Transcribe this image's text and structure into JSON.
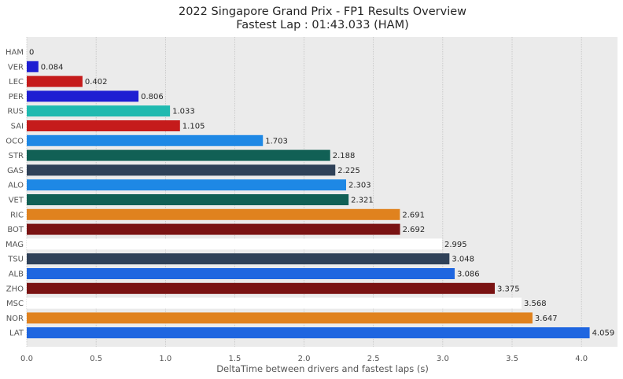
{
  "chart_data": {
    "type": "bar",
    "orientation": "horizontal",
    "title": "2022 Singapore Grand Prix - FP1 Results Overview",
    "subtitle": "Fastest Lap : 01:43.033 (HAM)",
    "xlabel": "DeltaTime between drivers and fastest laps (s)",
    "ylabel": "",
    "xlim": [
      0,
      4.26
    ],
    "xticks": [
      "0.0",
      "0.5",
      "1.0",
      "1.5",
      "2.0",
      "2.5",
      "3.0",
      "3.5",
      "4.0"
    ],
    "grid": true,
    "background": "#ebebeb",
    "categories": [
      "HAM",
      "VER",
      "LEC",
      "PER",
      "RUS",
      "SAI",
      "OCO",
      "STR",
      "GAS",
      "ALO",
      "VET",
      "RIC",
      "BOT",
      "MAG",
      "TSU",
      "ALB",
      "ZHO",
      "MSC",
      "NOR",
      "LAT"
    ],
    "values": [
      0,
      0.084,
      0.402,
      0.806,
      1.033,
      1.105,
      1.703,
      2.188,
      2.225,
      2.303,
      2.321,
      2.691,
      2.692,
      2.995,
      3.048,
      3.086,
      3.375,
      3.568,
      3.647,
      4.059
    ],
    "value_labels": [
      "0",
      "0.084",
      "0.402",
      "0.806",
      "1.033",
      "1.105",
      "1.703",
      "2.188",
      "2.225",
      "2.303",
      "2.321",
      "2.691",
      "2.692",
      "2.995",
      "3.048",
      "3.086",
      "3.375",
      "3.568",
      "3.647",
      "4.059"
    ],
    "colors": [
      "#00d2be",
      "#1e1ed2",
      "#c51b1b",
      "#1e1ed2",
      "#1fbab0",
      "#c51b1b",
      "#1e88e5",
      "#116055",
      "#2f4158",
      "#1e88e5",
      "#116055",
      "#e0821e",
      "#7a1313",
      "#ffffff",
      "#2f4158",
      "#1f66e0",
      "#7a1313",
      "#ffffff",
      "#e0821e",
      "#1f66e0"
    ]
  }
}
